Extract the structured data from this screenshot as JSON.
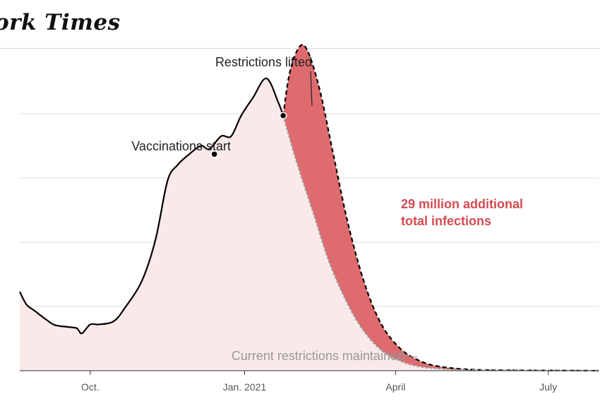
{
  "masthead": "ork Times",
  "chart_data": {
    "type": "area",
    "title": "",
    "xlabel": "",
    "ylabel": "",
    "x_ticks": [
      "Oct.",
      "Jan. 2021",
      "April",
      "July"
    ],
    "x_tick_dates": [
      "2020-10-01",
      "2021-01-01",
      "2021-04-01",
      "2021-07-01"
    ],
    "grid": true,
    "series": [
      {
        "name": "Current restrictions maintained",
        "color": "#999999",
        "style": "solid-then-dotted",
        "points": [
          [
            "2020-08-20",
            1.23
          ],
          [
            "2020-08-24",
            1.03
          ],
          [
            "2020-08-29",
            0.93
          ],
          [
            "2020-09-05",
            0.79
          ],
          [
            "2020-09-10",
            0.71
          ],
          [
            "2020-09-18",
            0.68
          ],
          [
            "2020-09-23",
            0.66
          ],
          [
            "2020-09-26",
            0.58
          ],
          [
            "2020-10-01",
            0.72
          ],
          [
            "2020-10-06",
            0.72
          ],
          [
            "2020-10-15",
            0.77
          ],
          [
            "2020-10-22",
            0.99
          ],
          [
            "2020-11-01",
            1.41
          ],
          [
            "2020-11-09",
            2.05
          ],
          [
            "2020-11-16",
            2.95
          ],
          [
            "2020-11-22",
            3.2
          ],
          [
            "2020-11-29",
            3.37
          ],
          [
            "2020-12-06",
            3.5
          ],
          [
            "2020-12-11",
            3.45
          ],
          [
            "2020-12-18",
            3.65
          ],
          [
            "2020-12-24",
            3.65
          ],
          [
            "2020-12-30",
            3.97
          ],
          [
            "2021-01-06",
            4.25
          ],
          [
            "2021-01-14",
            4.55
          ],
          [
            "2021-01-21",
            4.18
          ],
          [
            "2021-01-24",
            3.97
          ],
          [
            "2021-02-01",
            3.25
          ],
          [
            "2021-02-11",
            2.45
          ],
          [
            "2021-02-21",
            1.65
          ],
          [
            "2021-03-05",
            0.96
          ],
          [
            "2021-03-15",
            0.55
          ],
          [
            "2021-03-25",
            0.29
          ],
          [
            "2021-04-04",
            0.15
          ],
          [
            "2021-04-14",
            0.07
          ],
          [
            "2021-04-28",
            0.03
          ],
          [
            "2021-05-17",
            0.01
          ],
          [
            "2021-07-31",
            0.0
          ]
        ]
      },
      {
        "name": "Restrictions lifted",
        "color": "#000000",
        "style": "dashed",
        "points": [
          [
            "2021-01-24",
            3.97
          ],
          [
            "2021-01-28",
            4.65
          ],
          [
            "2021-02-03",
            5.05
          ],
          [
            "2021-02-08",
            4.95
          ],
          [
            "2021-02-15",
            4.35
          ],
          [
            "2021-02-23",
            3.35
          ],
          [
            "2021-03-04",
            2.25
          ],
          [
            "2021-03-14",
            1.32
          ],
          [
            "2021-03-24",
            0.7
          ],
          [
            "2021-04-04",
            0.34
          ],
          [
            "2021-04-14",
            0.17
          ],
          [
            "2021-04-24",
            0.08
          ],
          [
            "2021-05-09",
            0.03
          ],
          [
            "2021-05-29",
            0.01
          ],
          [
            "2021-07-31",
            0.0
          ]
        ]
      }
    ],
    "ylim": [
      0,
      5.0
    ],
    "xlim": [
      "2020-08-20",
      "2021-07-31"
    ],
    "markers": [
      {
        "label": "Vaccinations start",
        "date": "2020-12-14",
        "value": 3.37
      },
      {
        "label": "Restrictions lifted",
        "date": "2021-01-24",
        "value": 3.97
      }
    ],
    "annotations": {
      "vaccinations": "Vaccinations start",
      "lifted": "Restrictions lifted",
      "additional_line1": "29 million additional",
      "additional_line2": "total infections",
      "maintained": "Current restrictions maintained—"
    },
    "colors": {
      "base_fill": "#f9e9e8",
      "extra_fill": "#de6b6e",
      "accent_text": "#d34a4f",
      "grid": "#dddddd",
      "axis": "#333333"
    }
  }
}
